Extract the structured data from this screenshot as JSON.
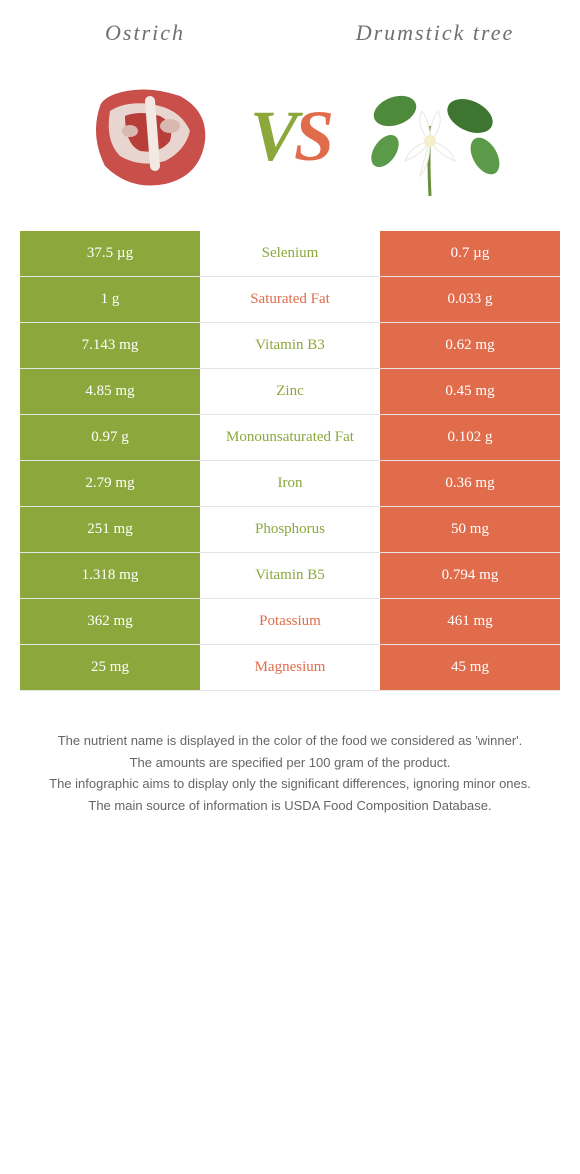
{
  "colors": {
    "green": "#8ca83c",
    "orange": "#e06c4c",
    "text_gray": "#707070",
    "border": "#e5e5e5",
    "white": "#ffffff"
  },
  "header": {
    "left_title": "Ostrich",
    "right_title": "Drumstick tree"
  },
  "vs": {
    "v": "V",
    "s": "S"
  },
  "rows": [
    {
      "left": "37.5 µg",
      "name": "Selenium",
      "right": "0.7 µg",
      "winner": "left"
    },
    {
      "left": "1 g",
      "name": "Saturated Fat",
      "right": "0.033 g",
      "winner": "right"
    },
    {
      "left": "7.143 mg",
      "name": "Vitamin B3",
      "right": "0.62 mg",
      "winner": "left"
    },
    {
      "left": "4.85 mg",
      "name": "Zinc",
      "right": "0.45 mg",
      "winner": "left"
    },
    {
      "left": "0.97 g",
      "name": "Monounsaturated Fat",
      "right": "0.102 g",
      "winner": "left"
    },
    {
      "left": "2.79 mg",
      "name": "Iron",
      "right": "0.36 mg",
      "winner": "left"
    },
    {
      "left": "251 mg",
      "name": "Phosphorus",
      "right": "50 mg",
      "winner": "left"
    },
    {
      "left": "1.318 mg",
      "name": "Vitamin B5",
      "right": "0.794 mg",
      "winner": "left"
    },
    {
      "left": "362 mg",
      "name": "Potassium",
      "right": "461 mg",
      "winner": "right"
    },
    {
      "left": "25 mg",
      "name": "Magnesium",
      "right": "45 mg",
      "winner": "right"
    }
  ],
  "footer": {
    "line1": "The nutrient name is displayed in the color of the food we considered as 'winner'.",
    "line2": "The amounts are specified per 100 gram of the product.",
    "line3": "The infographic aims to display only the significant differences, ignoring minor ones.",
    "line4": "The main source of information is USDA Food Composition Database."
  }
}
